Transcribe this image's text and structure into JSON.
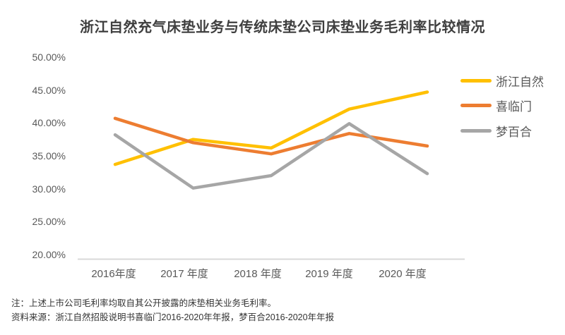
{
  "title": "浙江自然充气床垫业务与传统床垫公司床垫业务毛利率比较情况",
  "chart_data": {
    "type": "line",
    "title": "浙江自然充气床垫业务与传统床垫公司床垫业务毛利率比较情况",
    "categories": [
      "2016年度",
      "2017 年度",
      "2018 年度",
      "2019 年度",
      "2020 年度"
    ],
    "series": [
      {
        "name": "浙江自然",
        "slug": "zhejiang-nature",
        "color": "#FFC000",
        "values": [
          33.7,
          37.5,
          36.2,
          42.1,
          44.7
        ]
      },
      {
        "name": "喜临门",
        "slug": "xilinmen",
        "color": "#ED7D31",
        "values": [
          40.7,
          37.0,
          35.3,
          38.4,
          36.5
        ]
      },
      {
        "name": "梦百合",
        "slug": "mlily",
        "color": "#A6A6A6",
        "values": [
          38.2,
          30.1,
          32.0,
          39.9,
          32.3
        ]
      }
    ],
    "ylim": [
      20,
      50
    ],
    "y_ticks": [
      {
        "value": 50,
        "label": "50.00%"
      },
      {
        "value": 45,
        "label": "45.00%"
      },
      {
        "value": 40,
        "label": "40.00%"
      },
      {
        "value": 35,
        "label": "35.00%"
      },
      {
        "value": 30,
        "label": "30.00%"
      },
      {
        "value": 25,
        "label": "25.00%"
      },
      {
        "value": 20,
        "label": "20.00%"
      }
    ],
    "grid": false,
    "legend_position": "right",
    "unit": "percent"
  },
  "colors": {
    "axis_text": "#595959",
    "axis_line": "#D9D9D9",
    "title_text": "#3F3F3F",
    "footnote_text": "#333333"
  },
  "footnotes": {
    "note": "注：上述上市公司毛利率均取自其公开披露的床垫相关业务毛利率。",
    "source": "资料来源：浙江自然招股说明书喜临门2016-2020年年报，梦百合2016-2020年年报"
  }
}
